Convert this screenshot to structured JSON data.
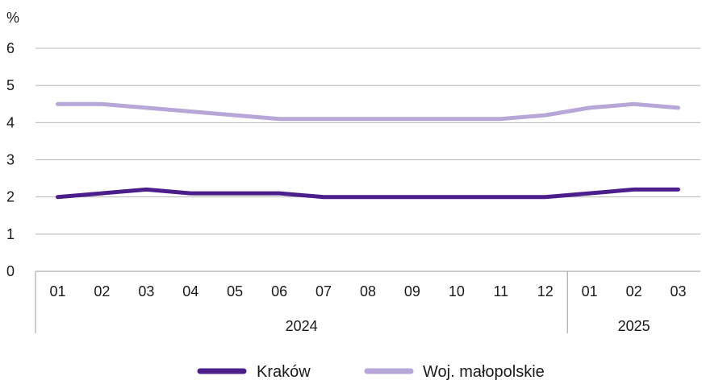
{
  "chart_data": {
    "type": "line",
    "ylabel": "%",
    "ylim": [
      0,
      6
    ],
    "yticks": [
      "0",
      "1",
      "2",
      "3",
      "4",
      "5",
      "6"
    ],
    "categories": [
      "01",
      "02",
      "03",
      "04",
      "05",
      "06",
      "07",
      "08",
      "09",
      "10",
      "11",
      "12",
      "01",
      "02",
      "03"
    ],
    "year_groups": [
      {
        "label": "2024",
        "count": 12
      },
      {
        "label": "2025",
        "count": 3
      }
    ],
    "series": [
      {
        "name": "Kraków",
        "color": "#4b1e8c",
        "values": [
          2.0,
          2.1,
          2.2,
          2.1,
          2.1,
          2.1,
          2.0,
          2.0,
          2.0,
          2.0,
          2.0,
          2.0,
          2.1,
          2.2,
          2.2
        ]
      },
      {
        "name": "Woj. małopolskie",
        "color": "#b7a6d8",
        "values": [
          4.5,
          4.5,
          4.4,
          4.3,
          4.2,
          4.1,
          4.1,
          4.1,
          4.1,
          4.1,
          4.1,
          4.2,
          4.4,
          4.5,
          4.4
        ]
      }
    ],
    "grid": true,
    "legend_position": "bottom-center"
  }
}
